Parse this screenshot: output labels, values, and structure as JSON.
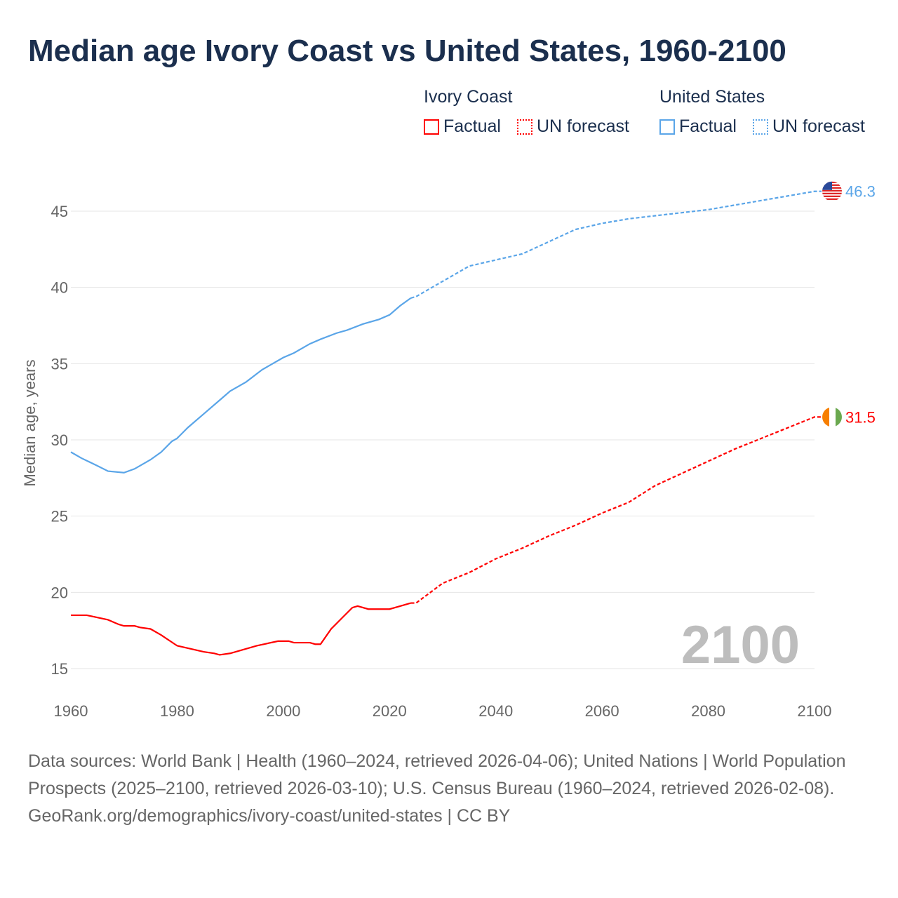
{
  "title": "Median age Ivory Coast vs United States, 1960-2100",
  "legend": {
    "groups": [
      {
        "name": "Ivory Coast",
        "color": "#ff0000",
        "factual": "Factual",
        "forecast": "UN forecast"
      },
      {
        "name": "United States",
        "color": "#5aa5e8",
        "factual": "Factual",
        "forecast": "UN forecast"
      }
    ]
  },
  "year_watermark": "2100",
  "footer": {
    "sources": "Data sources: World Bank | Health (1960–2024, retrieved 2026-04-06); United Nations | World Population Prospects (2025–2100, retrieved 2026-03-10); U.S. Census Bureau (1960–2024, retrieved 2026-02-08).",
    "attribution": "GeoRank.org/demographics/ivory-coast/united-states | CC BY"
  },
  "chart_data": {
    "type": "line",
    "title": "Median age Ivory Coast vs United States, 1960-2100",
    "xlabel": "",
    "ylabel": "Median age, years",
    "xlim": [
      1960,
      2100
    ],
    "ylim": [
      14,
      47
    ],
    "xticks": [
      1960,
      1980,
      2000,
      2020,
      2040,
      2060,
      2080,
      2100
    ],
    "yticks": [
      15,
      20,
      25,
      30,
      35,
      40,
      45
    ],
    "grid": true,
    "forecast_start": 2024,
    "series": [
      {
        "name": "Ivory Coast",
        "color": "#ff0000",
        "end_label": "31.5",
        "flag": "ivory-coast",
        "x": [
          1960,
          1963,
          1967,
          1969,
          1970,
          1972,
          1973,
          1975,
          1977,
          1980,
          1985,
          1987,
          1988,
          1990,
          1995,
          1999,
          2001,
          2002,
          2005,
          2006,
          2007,
          2009,
          2011,
          2013,
          2014,
          2016,
          2020,
          2022,
          2024,
          2025,
          2030,
          2035,
          2040,
          2045,
          2050,
          2055,
          2060,
          2065,
          2070,
          2075,
          2080,
          2085,
          2090,
          2095,
          2100
        ],
        "y": [
          18.5,
          18.5,
          18.2,
          17.9,
          17.8,
          17.8,
          17.7,
          17.6,
          17.2,
          16.5,
          16.1,
          16.0,
          15.9,
          16.0,
          16.5,
          16.8,
          16.8,
          16.7,
          16.7,
          16.6,
          16.6,
          17.6,
          18.3,
          19.0,
          19.1,
          18.9,
          18.9,
          19.1,
          19.3,
          19.3,
          20.6,
          21.3,
          22.2,
          22.9,
          23.7,
          24.4,
          25.2,
          25.9,
          27.0,
          27.8,
          28.6,
          29.4,
          30.1,
          30.8,
          31.5
        ]
      },
      {
        "name": "United States",
        "color": "#5aa5e8",
        "end_label": "46.3",
        "flag": "united-states",
        "x": [
          1960,
          1962,
          1965,
          1967,
          1970,
          1972,
          1975,
          1977,
          1979,
          1980,
          1982,
          1985,
          1988,
          1990,
          1993,
          1996,
          1998,
          2000,
          2002,
          2005,
          2007,
          2010,
          2012,
          2015,
          2018,
          2020,
          2022,
          2024,
          2025,
          2030,
          2035,
          2040,
          2045,
          2050,
          2055,
          2060,
          2065,
          2070,
          2075,
          2080,
          2085,
          2090,
          2095,
          2100
        ],
        "y": [
          29.2,
          28.8,
          28.3,
          27.95,
          27.85,
          28.1,
          28.7,
          29.2,
          29.9,
          30.1,
          30.8,
          31.7,
          32.6,
          33.2,
          33.8,
          34.6,
          35.0,
          35.4,
          35.7,
          36.3,
          36.6,
          37.0,
          37.2,
          37.6,
          37.9,
          38.2,
          38.8,
          39.3,
          39.4,
          40.4,
          41.4,
          41.8,
          42.2,
          43.0,
          43.8,
          44.2,
          44.5,
          44.7,
          44.9,
          45.1,
          45.4,
          45.7,
          46.0,
          46.3
        ]
      }
    ]
  }
}
